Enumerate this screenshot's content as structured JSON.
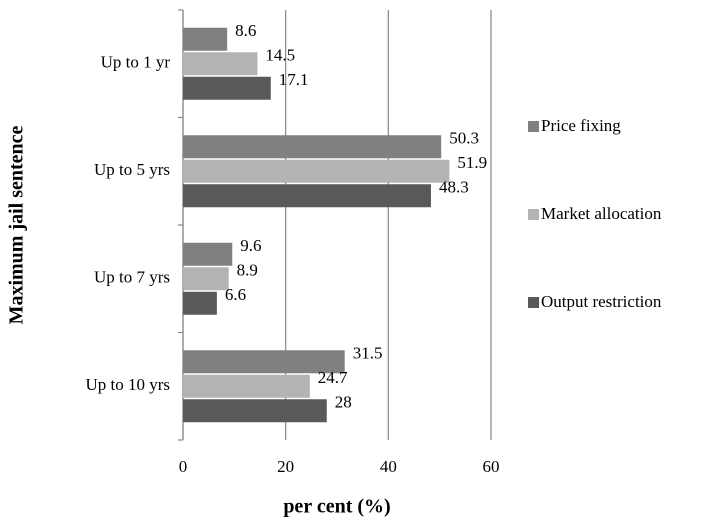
{
  "chart_data": {
    "type": "bar",
    "orientation": "horizontal",
    "xlabel": "per cent (%)",
    "ylabel": "Maximum jail sentence",
    "categories": [
      "Up to 1 yr",
      "Up to 5 yrs",
      "Up to 7 yrs",
      "Up to 10 yrs"
    ],
    "series": [
      {
        "name": "Price fixing",
        "color": "#808080",
        "values": [
          8.6,
          50.3,
          9.6,
          31.5
        ]
      },
      {
        "name": "Market allocation",
        "color": "#b3b3b3",
        "values": [
          14.5,
          51.9,
          8.9,
          24.7
        ]
      },
      {
        "name": "Output restriction",
        "color": "#595959",
        "values": [
          17.1,
          48.3,
          6.6,
          28
        ]
      }
    ],
    "xlim": [
      0,
      60
    ],
    "xticks": [
      0,
      20,
      40,
      60
    ],
    "grid": true,
    "legend": "right"
  }
}
